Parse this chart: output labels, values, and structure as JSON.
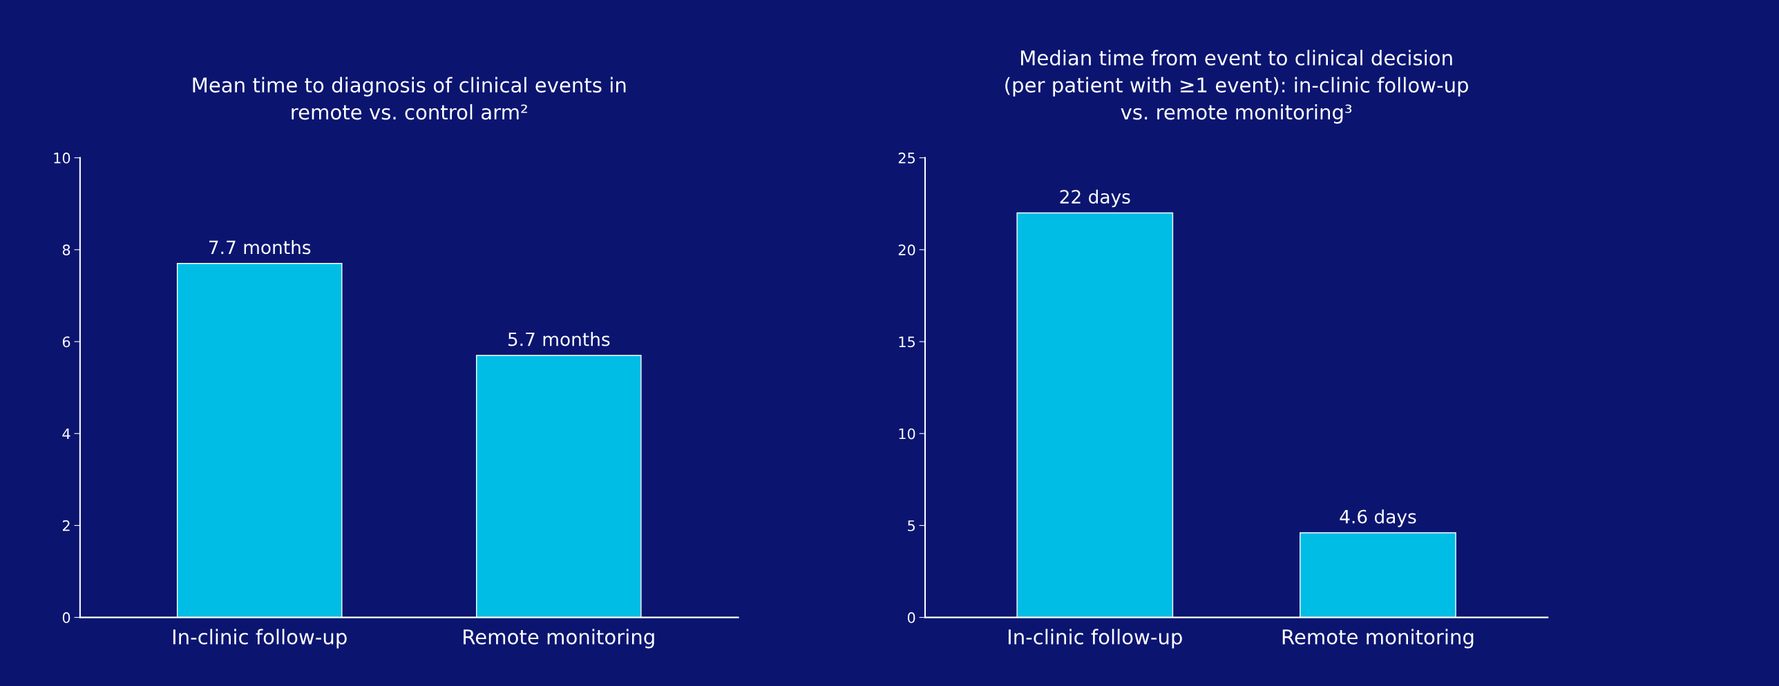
{
  "chart_data": [
    {
      "type": "bar",
      "title": "Mean time to diagnosis of clinical events in\nremote vs. control arm²",
      "categories": [
        "In-clinic follow-up",
        "Remote monitoring"
      ],
      "values": [
        7.7,
        5.7
      ],
      "value_labels": [
        "7.7 months",
        "5.7 months"
      ],
      "color": "#00bde6",
      "ylim": [
        0,
        10
      ],
      "yticks": [
        0,
        2,
        4,
        6,
        8,
        10
      ]
    },
    {
      "type": "bar",
      "title": "Median time from event to clinical decision\n(per patient with ≥1 event): in-clinic follow-up\nvs. remote monitoring³",
      "categories": [
        "In-clinic follow-up",
        "Remote monitoring"
      ],
      "values": [
        22,
        4.6
      ],
      "value_labels": [
        "22 days",
        "4.6 days"
      ],
      "color": "#00bde6",
      "ylim": [
        0,
        25
      ],
      "yticks": [
        0,
        5,
        10,
        15,
        20,
        25
      ]
    }
  ]
}
